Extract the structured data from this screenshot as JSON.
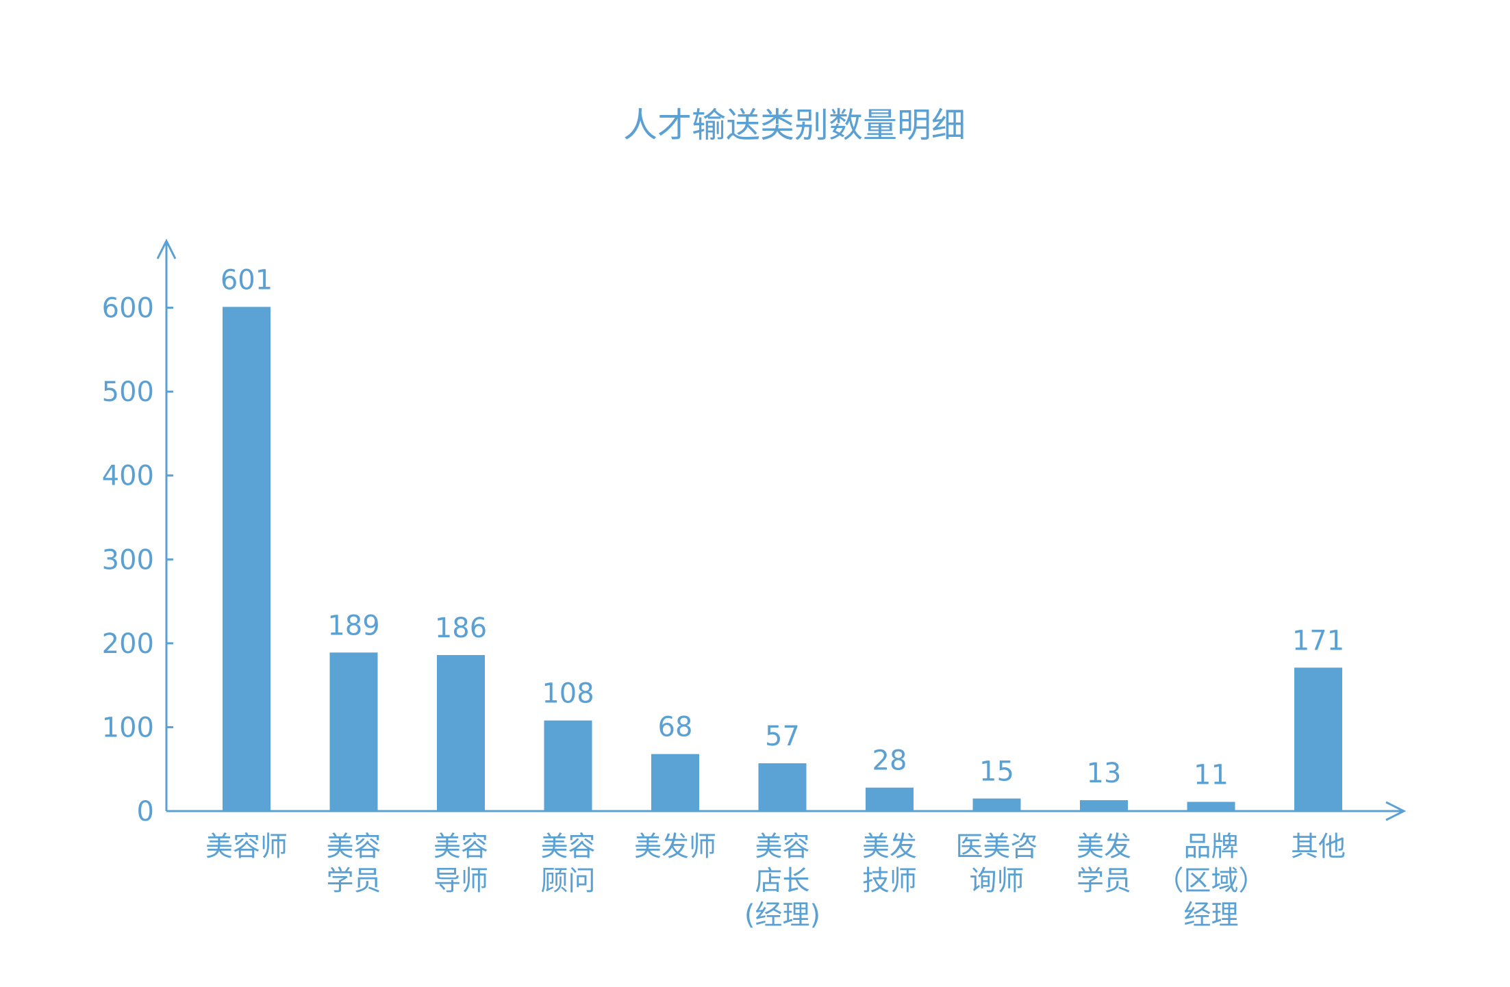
{
  "chart_data": {
    "type": "bar",
    "title": "人才输送类别数量明细",
    "xlabel": "",
    "ylabel": "",
    "categories": [
      [
        "美容师"
      ],
      [
        "美容",
        "学员"
      ],
      [
        "美容",
        "导师"
      ],
      [
        "美容",
        "顾问"
      ],
      [
        "美发师"
      ],
      [
        "美容",
        "店长",
        "(经理)"
      ],
      [
        "美发",
        "技师"
      ],
      [
        "医美咨",
        "询师"
      ],
      [
        "美发",
        "学员"
      ],
      [
        "品牌",
        "（区域）",
        "经理"
      ],
      [
        "其他"
      ]
    ],
    "values": [
      601,
      189,
      186,
      108,
      68,
      57,
      28,
      15,
      13,
      11,
      171
    ],
    "data_labels": [
      "601",
      "189",
      "186",
      "108",
      "68",
      "57",
      "28",
      "15",
      "13",
      "11",
      "171"
    ],
    "yticks": [
      0,
      100,
      200,
      300,
      400,
      500,
      600
    ],
    "ylim": [
      0,
      680
    ],
    "grid": false,
    "legend": "none",
    "bar_color": "#5ba3d5",
    "axis_color": "#5aa0d2",
    "text_color": "#5aa0d2"
  }
}
